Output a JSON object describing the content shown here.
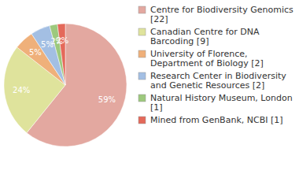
{
  "chart_data": {
    "type": "pie",
    "categories": [
      "Centre for Biodiversity Genomics [22]",
      "Canadian Centre for DNA Barcoding [9]",
      "University of Florence, Department of Biology [2]",
      "Research Center in Biodiversity and Genetic Resources [2]",
      "Natural History Museum, London [1]",
      "Mined from GenBank, NCBI [1]"
    ],
    "values": [
      59,
      24,
      5,
      5,
      2,
      2
    ],
    "value_labels": [
      "59%",
      "24%",
      "5%",
      "5%",
      "2%",
      "2%"
    ],
    "data_labels": true,
    "legend": "right",
    "colors": [
      "#e3a8a0",
      "#dfe39c",
      "#efb07a",
      "#a3bfe3",
      "#9dc97d",
      "#e4695a"
    ]
  }
}
